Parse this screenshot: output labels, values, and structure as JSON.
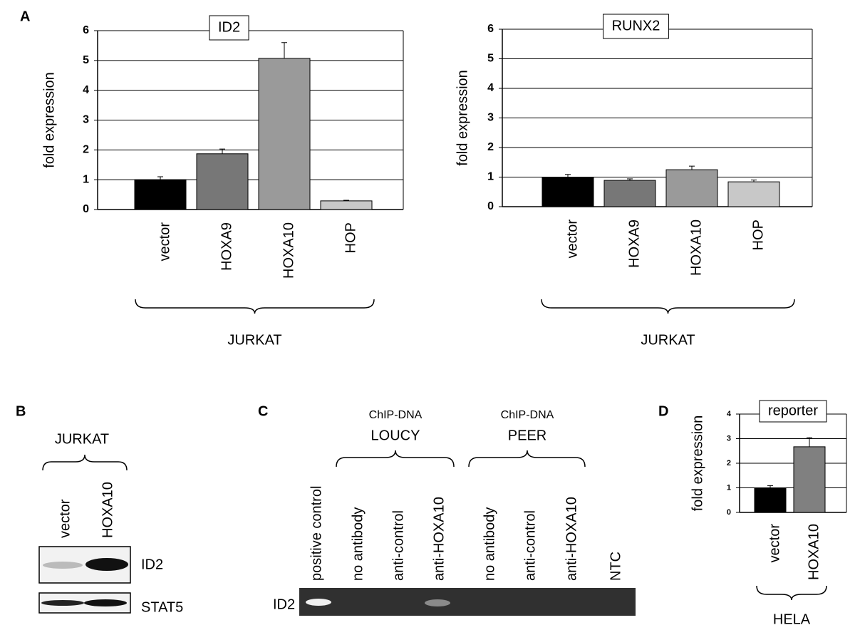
{
  "panel_labels": [
    "A",
    "B",
    "C",
    "D"
  ],
  "chart_data": [
    {
      "type": "bar",
      "title": "ID2",
      "y_label": "fold expression",
      "categories": [
        "vector",
        "HOXA9",
        "HOXA10",
        "HOP"
      ],
      "values": [
        1.0,
        1.87,
        5.07,
        0.29
      ],
      "errors": [
        0.1,
        0.16,
        0.53,
        0.02
      ],
      "colors": [
        "#000000",
        "#777777",
        "#9a9a9a",
        "#c8c8c8"
      ],
      "ylim": [
        0,
        6
      ],
      "yticks": [
        0,
        1,
        2,
        3,
        4,
        5,
        6
      ],
      "grid": true,
      "group_label": "JURKAT"
    },
    {
      "type": "bar",
      "title": "RUNX2",
      "y_label": "fold expression",
      "categories": [
        "vector",
        "HOXA9",
        "HOXA10",
        "HOP"
      ],
      "values": [
        0.99,
        0.89,
        1.25,
        0.84
      ],
      "errors": [
        0.1,
        0.05,
        0.12,
        0.06
      ],
      "colors": [
        "#000000",
        "#777777",
        "#9a9a9a",
        "#c8c8c8"
      ],
      "ylim": [
        0,
        6
      ],
      "yticks": [
        0,
        1,
        2,
        3,
        4,
        5,
        6
      ],
      "grid": true,
      "group_label": "JURKAT"
    },
    {
      "type": "bar",
      "title": "reporter",
      "y_label": "fold expression",
      "categories": [
        "vector",
        "HOXA10"
      ],
      "values": [
        0.99,
        2.67
      ],
      "errors": [
        0.1,
        0.37
      ],
      "colors": [
        "#000000",
        "#808080"
      ],
      "ylim": [
        0,
        4
      ],
      "yticks": [
        0,
        1,
        2,
        3,
        4
      ],
      "grid": true,
      "group_label": "HELA"
    }
  ],
  "western_blot": {
    "cell_line": "JURKAT",
    "lanes": [
      "vector",
      "HOXA10"
    ],
    "bands": [
      "ID2",
      "STAT5"
    ]
  },
  "chip": {
    "groups": [
      {
        "title": "ChIP-DNA",
        "cell_line": "LOUCY"
      },
      {
        "title": "ChIP-DNA",
        "cell_line": "PEER"
      }
    ],
    "lanes": [
      "positive control",
      "no antibody",
      "anti-control",
      "anti-HOXA10",
      "no antibody",
      "anti-control",
      "anti-HOXA10",
      "NTC"
    ],
    "band": "ID2"
  }
}
